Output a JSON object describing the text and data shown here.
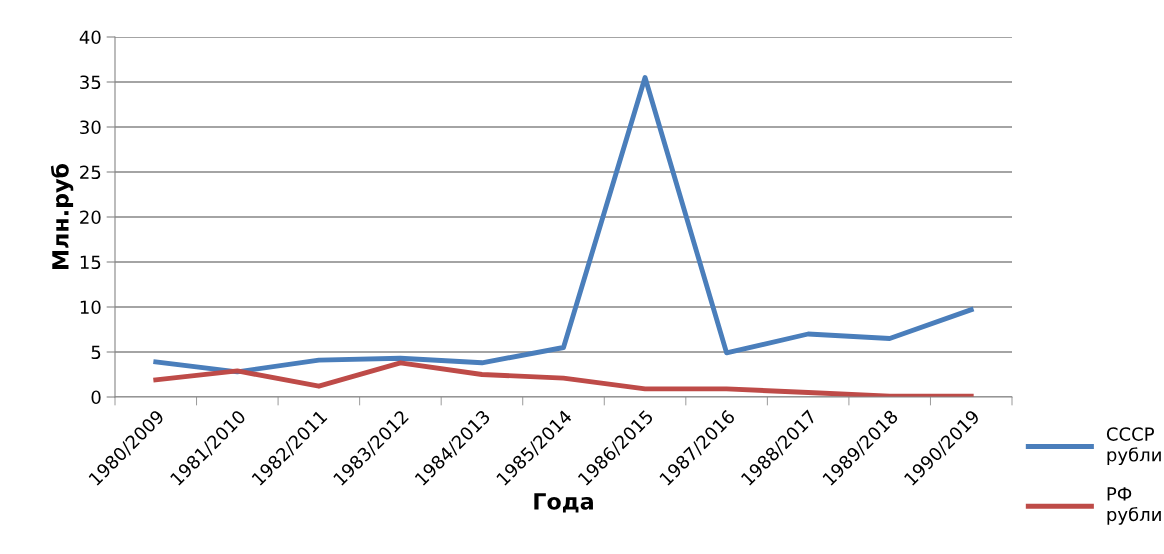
{
  "chart_data": {
    "type": "line",
    "xlabel": "Года",
    "ylabel": "Млн.руб",
    "categories": [
      "1980/2009",
      "1981/2010",
      "1982/2011",
      "1983/2012",
      "1984/2013",
      "1985/2014",
      "1986/2015",
      "1987/2016",
      "1988/2017",
      "1989/2018",
      "1990/2019"
    ],
    "series": [
      {
        "name": "СССР\nрубли",
        "color": "#4a7ebb",
        "values": [
          3.9,
          2.8,
          4.1,
          4.3,
          3.8,
          5.5,
          35.5,
          4.9,
          7.0,
          6.5,
          9.7
        ]
      },
      {
        "name": "РФ\nрубли",
        "color": "#be4b48",
        "values": [
          1.9,
          2.9,
          1.2,
          3.8,
          2.5,
          2.1,
          0.9,
          0.9,
          0.5,
          0.1,
          0.1
        ]
      }
    ],
    "ylim": [
      0,
      40
    ],
    "yticks": [
      0,
      5,
      10,
      15,
      20,
      25,
      30,
      35,
      40
    ],
    "grid": "y",
    "legend": "bottom right",
    "marker": "none",
    "line_style": "solid"
  }
}
